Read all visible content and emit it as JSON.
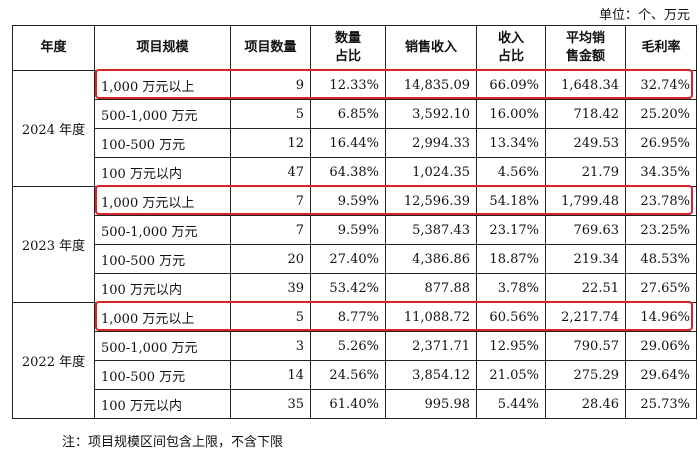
{
  "unit_label": "单位：个、万元",
  "headers": [
    "年度",
    "项目规模",
    "项目数量",
    "数量\n占比",
    "销售收入",
    "收入\n占比",
    "平均销\n售金额",
    "毛利率"
  ],
  "groups": [
    {
      "year": "2024 年度",
      "rows": [
        {
          "scale": "1,000 万元以上",
          "count": "9",
          "count_pct": "12.33%",
          "revenue": "14,835.09",
          "revenue_pct": "66.09%",
          "avg": "1,648.34",
          "margin": "32.74%"
        },
        {
          "scale": "500-1,000 万元",
          "count": "5",
          "count_pct": "6.85%",
          "revenue": "3,592.10",
          "revenue_pct": "16.00%",
          "avg": "718.42",
          "margin": "25.20%"
        },
        {
          "scale": "100-500 万元",
          "count": "12",
          "count_pct": "16.44%",
          "revenue": "2,994.33",
          "revenue_pct": "13.34%",
          "avg": "249.53",
          "margin": "26.95%"
        },
        {
          "scale": "100 万元以内",
          "count": "47",
          "count_pct": "64.38%",
          "revenue": "1,024.35",
          "revenue_pct": "4.56%",
          "avg": "21.79",
          "margin": "34.35%"
        }
      ]
    },
    {
      "year": "2023 年度",
      "rows": [
        {
          "scale": "1,000 万元以上",
          "count": "7",
          "count_pct": "9.59%",
          "revenue": "12,596.39",
          "revenue_pct": "54.18%",
          "avg": "1,799.48",
          "margin": "23.78%"
        },
        {
          "scale": "500-1,000 万元",
          "count": "7",
          "count_pct": "9.59%",
          "revenue": "5,387.43",
          "revenue_pct": "23.17%",
          "avg": "769.63",
          "margin": "23.25%"
        },
        {
          "scale": "100-500 万元",
          "count": "20",
          "count_pct": "27.40%",
          "revenue": "4,386.86",
          "revenue_pct": "18.87%",
          "avg": "219.34",
          "margin": "48.53%"
        },
        {
          "scale": "100 万元以内",
          "count": "39",
          "count_pct": "53.42%",
          "revenue": "877.88",
          "revenue_pct": "3.78%",
          "avg": "22.51",
          "margin": "27.65%"
        }
      ]
    },
    {
      "year": "2022 年度",
      "rows": [
        {
          "scale": "1,000 万元以上",
          "count": "5",
          "count_pct": "8.77%",
          "revenue": "11,088.72",
          "revenue_pct": "60.56%",
          "avg": "2,217.74",
          "margin": "14.96%"
        },
        {
          "scale": "500-1,000 万元",
          "count": "3",
          "count_pct": "5.26%",
          "revenue": "2,371.71",
          "revenue_pct": "12.95%",
          "avg": "790.57",
          "margin": "29.06%"
        },
        {
          "scale": "100-500 万元",
          "count": "14",
          "count_pct": "24.56%",
          "revenue": "3,854.12",
          "revenue_pct": "21.05%",
          "avg": "275.29",
          "margin": "29.64%"
        },
        {
          "scale": "100 万元以内",
          "count": "35",
          "count_pct": "61.40%",
          "revenue": "995.98",
          "revenue_pct": "5.44%",
          "avg": "28.46",
          "margin": "25.73%"
        }
      ]
    }
  ],
  "highlight_color": "#d8232a",
  "note": "注：项目规模区间包含上限，不含下限"
}
